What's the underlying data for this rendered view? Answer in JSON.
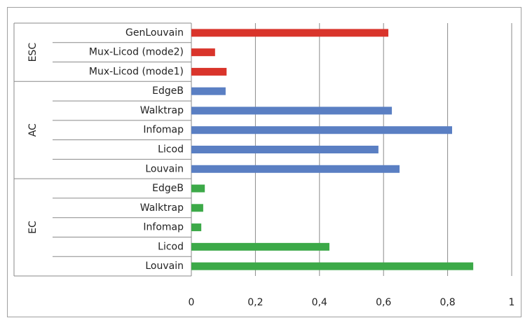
{
  "chart_data": {
    "type": "bar",
    "groups": [
      {
        "name": "ESC",
        "color": "#d9342b",
        "categories": [
          "GenLouvain",
          "Mux-Licod (mode2)",
          "Mux-Licod (mode1)"
        ],
        "values": [
          0.615,
          0.074,
          0.11
        ]
      },
      {
        "name": "AC",
        "color": "#5a7fc3",
        "categories": [
          "EdgeB",
          "Walktrap",
          "Infomap",
          "Licod",
          "Louvain"
        ],
        "values": [
          0.107,
          0.626,
          0.814,
          0.584,
          0.65
        ]
      },
      {
        "name": "EC",
        "color": "#3ca948",
        "categories": [
          "EdgeB",
          "Walktrap",
          "Infomap",
          "Licod",
          "Louvain"
        ],
        "values": [
          0.042,
          0.037,
          0.031,
          0.431,
          0.88
        ]
      }
    ],
    "xlim": [
      0,
      1
    ],
    "xticks": [
      0,
      {
        "value": 0.2,
        "label": "0,2"
      },
      {
        "value": 0.4,
        "label": "0,4"
      },
      {
        "value": 0.6,
        "label": "0,6"
      },
      {
        "value": 0.8,
        "label": "0,8"
      },
      1
    ],
    "grid": true
  }
}
